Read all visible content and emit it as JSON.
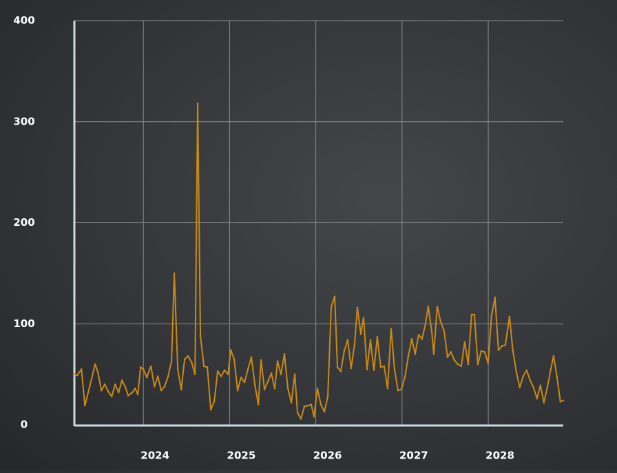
{
  "chart_data": {
    "type": "line",
    "x": [
      2023.202,
      2023.234,
      2023.282,
      2023.322,
      2023.378,
      2023.441,
      2023.473,
      2023.513,
      2023.553,
      2023.593,
      2023.633,
      2023.673,
      2023.713,
      2023.753,
      2023.793,
      2023.824,
      2023.872,
      2023.904,
      2023.936,
      2023.968,
      2024.0,
      2024.04,
      2024.088,
      2024.128,
      2024.168,
      2024.207,
      2024.247,
      2024.287,
      2024.327,
      2024.359,
      2024.399,
      2024.439,
      2024.479,
      2024.519,
      2024.559,
      2024.599,
      2024.63,
      2024.662,
      2024.702,
      2024.742,
      2024.782,
      2024.822,
      2024.862,
      2024.902,
      2024.942,
      2024.982,
      2025.014,
      2025.053,
      2025.093,
      2025.133,
      2025.173,
      2025.213,
      2025.253,
      2025.293,
      2025.333,
      2025.365,
      2025.405,
      2025.444,
      2025.484,
      2025.524,
      2025.556,
      2025.596,
      2025.636,
      2025.676,
      2025.716,
      2025.756,
      2025.788,
      2025.828,
      2025.867,
      2025.907,
      2025.947,
      2025.979,
      2026.019,
      2026.059,
      2026.099,
      2026.139,
      2026.179,
      2026.219,
      2026.251,
      2026.29,
      2026.33,
      2026.37,
      2026.41,
      2026.45,
      2026.482,
      2026.522,
      2026.554,
      2026.594,
      2026.634,
      2026.674,
      2026.713,
      2026.753,
      2026.793,
      2026.833,
      2026.873,
      2026.913,
      2026.953,
      2026.993,
      2027.033,
      2027.073,
      2027.113,
      2027.152,
      2027.192,
      2027.232,
      2027.272,
      2027.304,
      2027.344,
      2027.368,
      2027.408,
      2027.448,
      2027.488,
      2027.527,
      2027.567,
      2027.607,
      2027.647,
      2027.687,
      2027.727,
      2027.767,
      2027.807,
      2027.839,
      2027.879,
      2027.918,
      2027.958,
      2027.998,
      2028.038,
      2028.078,
      2028.118,
      2028.158,
      2028.198,
      2028.246,
      2028.286,
      2028.326,
      2028.365,
      2028.405,
      2028.445,
      2028.485,
      2028.525,
      2028.565,
      2028.605,
      2028.645,
      2028.685,
      2028.725,
      2028.757,
      2028.796,
      2028.836,
      2028.868
    ],
    "series": [
      {
        "color": "#c98a14",
        "values": [
          50,
          49,
          55,
          19,
          38,
          60,
          52,
          34,
          40,
          33,
          28,
          40,
          32,
          44,
          37,
          29,
          32,
          36,
          30,
          57,
          55,
          47,
          58,
          38,
          48,
          34,
          38,
          48,
          63,
          150,
          55,
          35,
          65,
          68,
          62,
          50,
          318,
          88,
          58,
          57,
          15,
          23,
          53,
          48,
          54,
          50,
          74,
          65,
          34,
          47,
          42,
          55,
          67,
          40,
          20,
          64,
          35,
          43,
          51,
          36,
          63,
          50,
          70,
          36,
          22,
          50,
          12,
          6,
          18,
          19,
          20,
          8,
          36,
          20,
          13,
          28,
          117,
          127,
          57,
          53,
          73,
          84,
          56,
          80,
          116,
          90,
          106,
          55,
          84,
          54,
          87,
          57,
          58,
          36,
          95,
          55,
          34,
          35,
          47,
          68,
          85,
          70,
          89,
          85,
          100,
          117,
          93,
          70,
          117,
          102,
          93,
          67,
          72,
          64,
          60,
          58,
          82,
          60,
          109,
          109,
          60,
          73,
          72,
          61,
          108,
          126,
          74,
          78,
          79,
          107,
          73,
          52,
          37,
          48,
          54,
          44,
          37,
          26,
          39,
          22,
          37,
          55,
          68,
          48,
          23,
          24
        ]
      }
    ],
    "xlim": [
      2023.2,
      2028.87
    ],
    "xticks": [
      2024,
      2025,
      2026,
      2027,
      2028
    ],
    "ylim": [
      0,
      400
    ],
    "yticks": [
      0,
      100,
      200,
      300,
      400
    ],
    "grid": true
  }
}
